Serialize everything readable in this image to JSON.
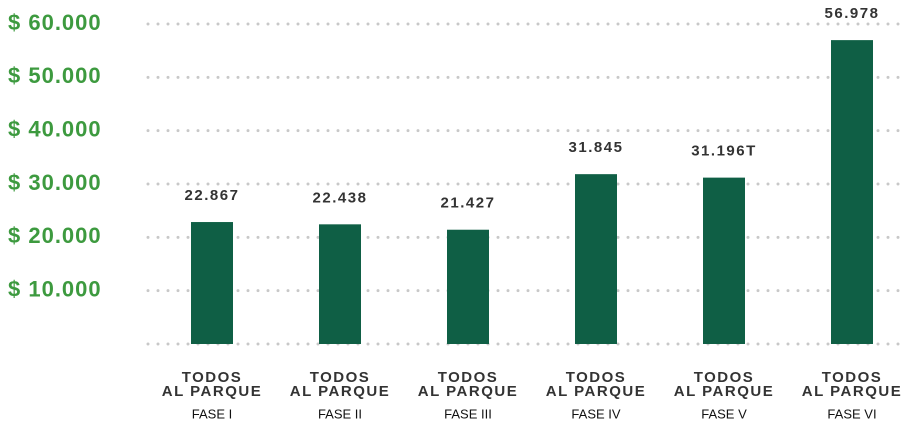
{
  "chart_data": {
    "type": "bar",
    "categories": [
      [
        "TODOS",
        "AL PARQUE",
        "FASE I"
      ],
      [
        "TODOS",
        "AL PARQUE",
        "FASE II"
      ],
      [
        "TODOS",
        "AL PARQUE",
        "FASE III"
      ],
      [
        "TODOS",
        "AL PARQUE",
        "FASE IV"
      ],
      [
        "TODOS",
        "AL PARQUE",
        "FASE V"
      ],
      [
        "TODOS",
        "AL PARQUE",
        "FASE VI"
      ]
    ],
    "values": [
      22867,
      22438,
      21427,
      31845,
      31196,
      56978
    ],
    "value_labels": [
      "22.867",
      "22.438",
      "21.427",
      "31.845",
      "31.196T",
      "56.978"
    ],
    "color": "#0f5f45",
    "ylim": [
      0,
      60000
    ],
    "yticks": [
      {
        "value": 10000,
        "label": "$ 10.000"
      },
      {
        "value": 20000,
        "label": "$ 20.000"
      },
      {
        "value": 30000,
        "label": "$ 30.000"
      },
      {
        "value": 40000,
        "label": "$ 40.000"
      },
      {
        "value": 50000,
        "label": "$ 50.000"
      },
      {
        "value": 60000,
        "label": "$ 60.000"
      }
    ],
    "grid": true
  }
}
